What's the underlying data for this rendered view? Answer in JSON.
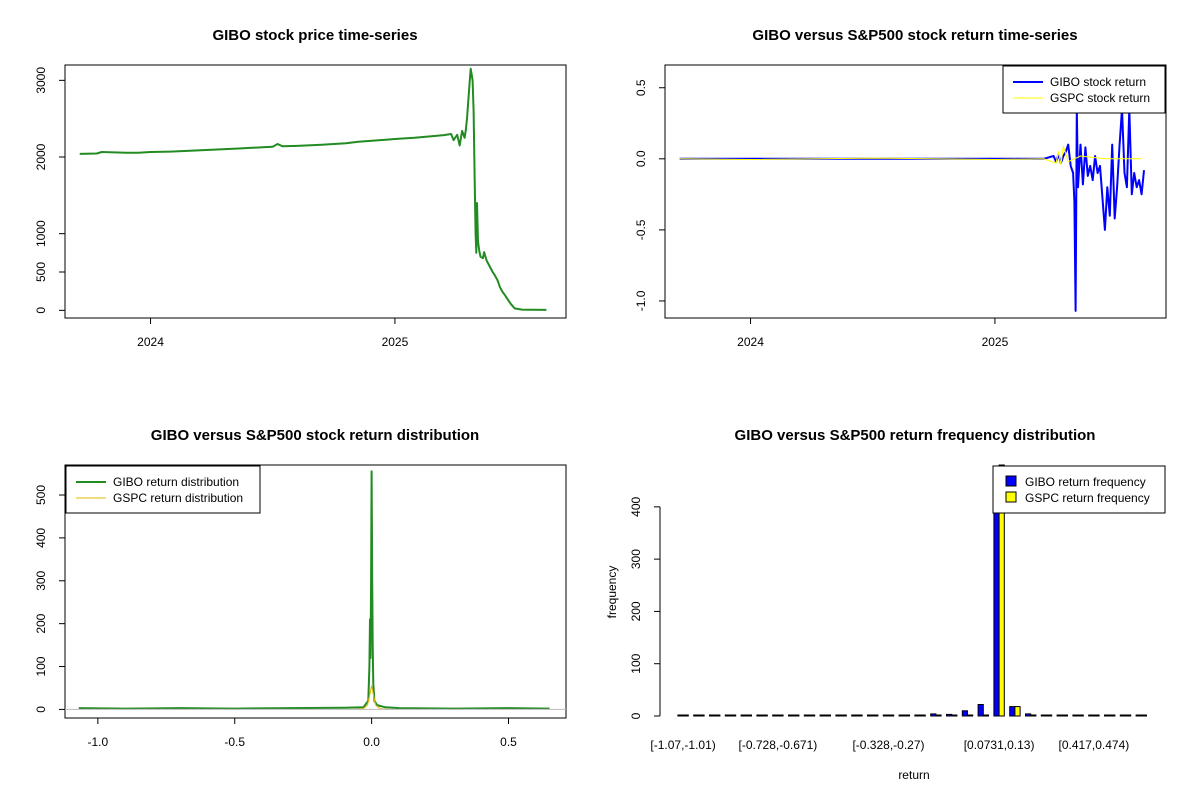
{
  "chart_data": [
    {
      "id": "price",
      "type": "line",
      "title": "GIBO stock price time-series",
      "xlabel": "",
      "ylabel": "",
      "xlim": [
        2023.65,
        2025.7
      ],
      "ylim": [
        -100,
        3200
      ],
      "x_ticks": [
        {
          "v": 2024,
          "label": "2024"
        },
        {
          "v": 2025,
          "label": "2025"
        }
      ],
      "y_ticks": [
        {
          "v": 0,
          "label": "0"
        },
        {
          "v": 500,
          "label": "500"
        },
        {
          "v": 1000,
          "label": "1000"
        },
        {
          "v": 2000,
          "label": "2000"
        },
        {
          "v": 3000,
          "label": "3000"
        }
      ],
      "series": [
        {
          "name": "GIBO stock price",
          "color": "#228B22",
          "points": [
            [
              2023.71,
              2040
            ],
            [
              2023.78,
              2045
            ],
            [
              2023.8,
              2065
            ],
            [
              2023.85,
              2060
            ],
            [
              2023.9,
              2055
            ],
            [
              2023.95,
              2055
            ],
            [
              2024.0,
              2065
            ],
            [
              2024.08,
              2070
            ],
            [
              2024.15,
              2080
            ],
            [
              2024.25,
              2095
            ],
            [
              2024.35,
              2110
            ],
            [
              2024.45,
              2125
            ],
            [
              2024.5,
              2135
            ],
            [
              2024.52,
              2170
            ],
            [
              2024.54,
              2140
            ],
            [
              2024.6,
              2145
            ],
            [
              2024.7,
              2160
            ],
            [
              2024.8,
              2180
            ],
            [
              2024.85,
              2200
            ],
            [
              2024.92,
              2215
            ],
            [
              2025.0,
              2235
            ],
            [
              2025.08,
              2250
            ],
            [
              2025.15,
              2270
            ],
            [
              2025.2,
              2285
            ],
            [
              2025.23,
              2300
            ],
            [
              2025.24,
              2220
            ],
            [
              2025.255,
              2290
            ],
            [
              2025.265,
              2150
            ],
            [
              2025.275,
              2340
            ],
            [
              2025.285,
              2250
            ],
            [
              2025.29,
              2350
            ],
            [
              2025.295,
              2500
            ],
            [
              2025.305,
              2950
            ],
            [
              2025.31,
              3150
            ],
            [
              2025.318,
              3000
            ],
            [
              2025.322,
              2600
            ],
            [
              2025.327,
              1600
            ],
            [
              2025.33,
              1000
            ],
            [
              2025.333,
              750
            ],
            [
              2025.336,
              1400
            ],
            [
              2025.34,
              900
            ],
            [
              2025.345,
              780
            ],
            [
              2025.35,
              700
            ],
            [
              2025.36,
              680
            ],
            [
              2025.365,
              760
            ],
            [
              2025.375,
              650
            ],
            [
              2025.39,
              560
            ],
            [
              2025.4,
              500
            ],
            [
              2025.41,
              450
            ],
            [
              2025.42,
              390
            ],
            [
              2025.43,
              300
            ],
            [
              2025.44,
              240
            ],
            [
              2025.45,
              200
            ],
            [
              2025.46,
              150
            ],
            [
              2025.475,
              80
            ],
            [
              2025.49,
              25
            ],
            [
              2025.52,
              10
            ],
            [
              2025.56,
              8
            ],
            [
              2025.62,
              6
            ]
          ]
        }
      ]
    },
    {
      "id": "returns",
      "type": "line",
      "title": "GIBO versus S&P500 stock return time-series",
      "xlabel": "",
      "ylabel": "",
      "xlim": [
        2023.65,
        2025.7
      ],
      "ylim": [
        -1.12,
        0.66
      ],
      "x_ticks": [
        {
          "v": 2024,
          "label": "2024"
        },
        {
          "v": 2025,
          "label": "2025"
        }
      ],
      "y_ticks": [
        {
          "v": -1.0,
          "label": "-1.0"
        },
        {
          "v": -0.5,
          "label": "-0.5"
        },
        {
          "v": 0.0,
          "label": "0.0"
        },
        {
          "v": 0.5,
          "label": "0.5"
        }
      ],
      "legend": {
        "position": "top-right",
        "items": [
          {
            "label": "GIBO stock return",
            "color": "#0000FF"
          },
          {
            "label": "GSPC stock return",
            "color": "#FFFF00"
          }
        ]
      },
      "series": [
        {
          "name": "GIBO stock return",
          "color": "#0000FF",
          "points": [
            [
              2023.71,
              0.0
            ],
            [
              2024.0,
              0.0
            ],
            [
              2024.5,
              0.0
            ],
            [
              2025.0,
              0.0
            ],
            [
              2025.2,
              0.0
            ],
            [
              2025.24,
              0.02
            ],
            [
              2025.25,
              -0.02
            ],
            [
              2025.26,
              0.03
            ],
            [
              2025.27,
              -0.03
            ],
            [
              2025.28,
              0.02
            ],
            [
              2025.29,
              0.05
            ],
            [
              2025.3,
              0.1
            ],
            [
              2025.31,
              -0.05
            ],
            [
              2025.32,
              -0.1
            ],
            [
              2025.325,
              -0.3
            ],
            [
              2025.33,
              -1.07
            ],
            [
              2025.335,
              0.35
            ],
            [
              2025.34,
              -0.2
            ],
            [
              2025.35,
              0.1
            ],
            [
              2025.36,
              -0.18
            ],
            [
              2025.37,
              0.08
            ],
            [
              2025.38,
              -0.12
            ],
            [
              2025.39,
              -0.05
            ],
            [
              2025.4,
              -0.15
            ],
            [
              2025.41,
              0.02
            ],
            [
              2025.42,
              -0.1
            ],
            [
              2025.43,
              -0.05
            ],
            [
              2025.44,
              -0.28
            ],
            [
              2025.45,
              -0.5
            ],
            [
              2025.46,
              -0.2
            ],
            [
              2025.47,
              -0.4
            ],
            [
              2025.48,
              0.1
            ],
            [
              2025.49,
              -0.42
            ],
            [
              2025.5,
              -0.2
            ],
            [
              2025.51,
              0.1
            ],
            [
              2025.52,
              0.35
            ],
            [
              2025.53,
              -0.1
            ],
            [
              2025.54,
              -0.2
            ],
            [
              2025.55,
              0.35
            ],
            [
              2025.56,
              -0.25
            ],
            [
              2025.57,
              -0.1
            ],
            [
              2025.58,
              -0.2
            ],
            [
              2025.59,
              -0.15
            ],
            [
              2025.6,
              -0.25
            ],
            [
              2025.61,
              -0.08
            ]
          ]
        },
        {
          "name": "GSPC stock return",
          "color": "#FFFF00",
          "points": [
            [
              2023.71,
              0.0
            ],
            [
              2024.0,
              -0.005
            ],
            [
              2024.5,
              0.005
            ],
            [
              2025.0,
              -0.005
            ],
            [
              2025.2,
              0.0
            ],
            [
              2025.25,
              -0.03
            ],
            [
              2025.26,
              0.05
            ],
            [
              2025.27,
              -0.04
            ],
            [
              2025.28,
              0.09
            ],
            [
              2025.3,
              -0.02
            ],
            [
              2025.35,
              0.02
            ],
            [
              2025.45,
              0.0
            ],
            [
              2025.6,
              0.0
            ]
          ]
        }
      ]
    },
    {
      "id": "distribution",
      "type": "line",
      "title": "GIBO versus S&P500 stock return distribution",
      "xlabel": "",
      "ylabel": "",
      "xlim": [
        -1.12,
        0.71
      ],
      "ylim": [
        -20,
        570
      ],
      "x_ticks": [
        {
          "v": -1.0,
          "label": "-1.0"
        },
        {
          "v": -0.5,
          "label": "-0.5"
        },
        {
          "v": 0.0,
          "label": "0.0"
        },
        {
          "v": 0.5,
          "label": "0.5"
        }
      ],
      "y_ticks": [
        {
          "v": 0,
          "label": "0"
        },
        {
          "v": 100,
          "label": "100"
        },
        {
          "v": 200,
          "label": "200"
        },
        {
          "v": 300,
          "label": "300"
        },
        {
          "v": 400,
          "label": "400"
        },
        {
          "v": 500,
          "label": "500"
        }
      ],
      "legend": {
        "position": "top-left",
        "items": [
          {
            "label": "GIBO return distribution",
            "color": "#228B22"
          },
          {
            "label": "GSPC return distribution",
            "color": "#E6B800"
          }
        ]
      },
      "series": [
        {
          "name": "GIBO return distribution",
          "color": "#228B22",
          "points": [
            [
              -1.07,
              3
            ],
            [
              -0.9,
              2
            ],
            [
              -0.7,
              3
            ],
            [
              -0.5,
              2
            ],
            [
              -0.3,
              3
            ],
            [
              -0.1,
              4
            ],
            [
              -0.03,
              5
            ],
            [
              -0.012,
              20
            ],
            [
              -0.008,
              100
            ],
            [
              -0.006,
              210
            ],
            [
              -0.004,
              120
            ],
            [
              -0.002,
              300
            ],
            [
              0.0,
              555
            ],
            [
              0.002,
              300
            ],
            [
              0.004,
              150
            ],
            [
              0.006,
              60
            ],
            [
              0.01,
              20
            ],
            [
              0.02,
              10
            ],
            [
              0.05,
              5
            ],
            [
              0.1,
              3
            ],
            [
              0.3,
              2
            ],
            [
              0.5,
              3
            ],
            [
              0.65,
              2
            ]
          ]
        },
        {
          "name": "GSPC return distribution",
          "color": "#E6B800",
          "points": [
            [
              -0.06,
              0
            ],
            [
              -0.03,
              2
            ],
            [
              -0.015,
              10
            ],
            [
              -0.008,
              30
            ],
            [
              0.0,
              55
            ],
            [
              0.008,
              30
            ],
            [
              0.015,
              10
            ],
            [
              0.03,
              2
            ],
            [
              0.06,
              0
            ]
          ]
        }
      ]
    },
    {
      "id": "frequency",
      "type": "bar",
      "title": "GIBO versus S&P500 return frequency distribution",
      "xlabel": "return",
      "ylabel": "frequency",
      "ylim": [
        0,
        480
      ],
      "y_ticks": [
        {
          "v": 0,
          "label": "0"
        },
        {
          "v": 100,
          "label": "100"
        },
        {
          "v": 200,
          "label": "200"
        },
        {
          "v": 300,
          "label": "300"
        },
        {
          "v": 400,
          "label": "400"
        }
      ],
      "x_tick_labels": [
        {
          "bin": 0,
          "label": "[-1.07,-1.01)"
        },
        {
          "bin": 6,
          "label": "[-0.728,-0.671)"
        },
        {
          "bin": 13,
          "label": "[-0.328,-0.27)"
        },
        {
          "bin": 20,
          "label": "[0.0731,0.13)"
        },
        {
          "bin": 26,
          "label": "[0.417,0.474)"
        }
      ],
      "legend": {
        "position": "top-right",
        "items": [
          {
            "label": "GIBO return frequency",
            "color": "#0000FF"
          },
          {
            "label": "GSPC return frequency",
            "color": "#FFFF00"
          }
        ]
      },
      "bins": 30,
      "series": [
        {
          "name": "GIBO return frequency",
          "color": "#0000FF",
          "values": [
            2,
            1,
            0,
            0,
            0,
            0,
            0,
            0,
            0,
            1,
            1,
            2,
            1,
            2,
            1,
            2,
            4,
            3,
            10,
            22,
            420,
            18,
            4,
            2,
            1,
            1,
            1,
            1,
            1,
            0
          ]
        },
        {
          "name": "GSPC return frequency",
          "color": "#FFFF00",
          "values": [
            0,
            0,
            0,
            0,
            0,
            0,
            0,
            0,
            0,
            0,
            0,
            0,
            0,
            0,
            0,
            0,
            0,
            0,
            0,
            0,
            500,
            18,
            0,
            0,
            0,
            0,
            0,
            0,
            0,
            0
          ]
        }
      ]
    }
  ]
}
